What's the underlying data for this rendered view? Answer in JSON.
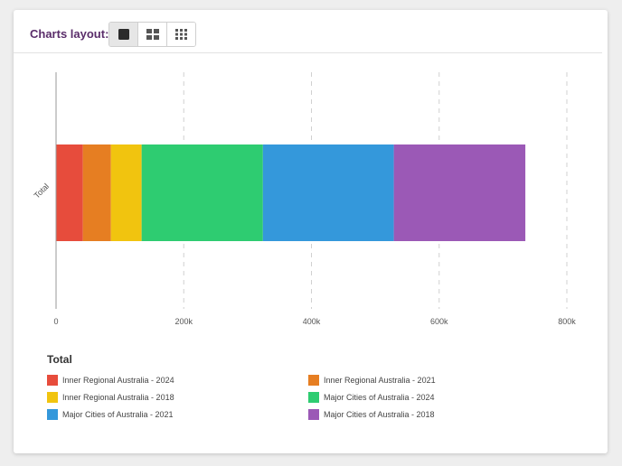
{
  "toolbar": {
    "label": "Charts layout:",
    "layouts": [
      {
        "icon": "single-chart-icon",
        "active": true
      },
      {
        "icon": "two-column-grid-icon",
        "active": false
      },
      {
        "icon": "three-column-grid-icon",
        "active": false
      }
    ]
  },
  "chart_data": {
    "type": "bar",
    "orientation": "horizontal",
    "stacked": true,
    "categories": [
      "Total"
    ],
    "series": [
      {
        "name": "Inner Regional Australia - 2024",
        "color": "#e74c3c",
        "values": [
          42000
        ]
      },
      {
        "name": "Inner Regional Australia - 2021",
        "color": "#e67e22",
        "values": [
          44000
        ]
      },
      {
        "name": "Inner Regional Australia - 2018",
        "color": "#f1c40f",
        "values": [
          48000
        ]
      },
      {
        "name": "Major Cities of Australia - 2024",
        "color": "#2ecc71",
        "values": [
          190000
        ]
      },
      {
        "name": "Major Cities of Australia - 2021",
        "color": "#3498db",
        "values": [
          205000
        ]
      },
      {
        "name": "Major Cities of Australia - 2018",
        "color": "#9b59b6",
        "values": [
          206000
        ]
      }
    ],
    "xlim": [
      0,
      800000
    ],
    "xticks": [
      0,
      200000,
      400000,
      600000,
      800000
    ],
    "xtick_labels": [
      "0",
      "200k",
      "400k",
      "600k",
      "800k"
    ],
    "xgrid": true,
    "legend_title": "Total",
    "legend_position": "bottom"
  }
}
